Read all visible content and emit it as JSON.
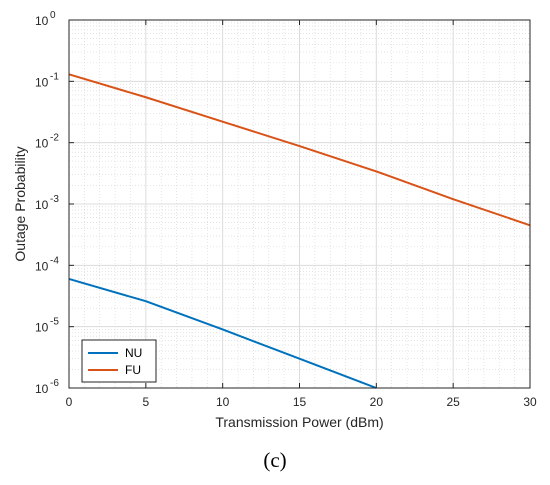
{
  "caption": "(c)",
  "chart_data": {
    "type": "line",
    "title": "",
    "xlabel": "Transmission Power (dBm)",
    "ylabel": "Outage Probability",
    "xlim": [
      0,
      30
    ],
    "ylim": [
      1e-06,
      1
    ],
    "yscale": "log",
    "grid": true,
    "minor_grid": true,
    "legend_position": "bottom-left",
    "x_ticks": [
      "0",
      "5",
      "10",
      "15",
      "20",
      "25",
      "30"
    ],
    "y_tick_exponents": [
      "-6",
      "-5",
      "-4",
      "-3",
      "-2",
      "-1",
      "0"
    ],
    "y_tick_base": "10",
    "series": [
      {
        "name": "NU",
        "color": "#0072BD",
        "x": [
          0,
          5,
          10,
          15,
          20
        ],
        "y": [
          6e-05,
          2.6e-05,
          9e-06,
          3e-06,
          1e-06
        ]
      },
      {
        "name": "FU",
        "color": "#D95319",
        "x": [
          0,
          5,
          10,
          15,
          20,
          25,
          30
        ],
        "y": [
          0.13,
          0.055,
          0.022,
          0.0088,
          0.0034,
          0.0012,
          0.00045
        ]
      }
    ]
  }
}
